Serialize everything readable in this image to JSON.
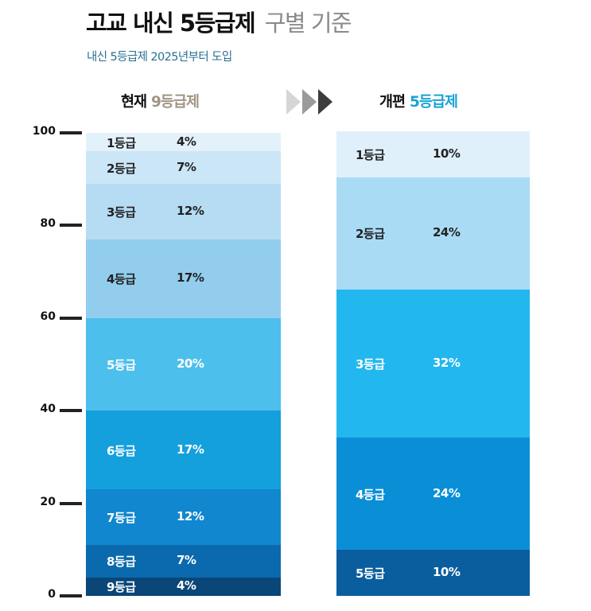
{
  "header": {
    "title_main": "고교 내신 5등급제",
    "title_sub": "구별 기준",
    "subtitle": "내신 5등급제 2025년부터 도입"
  },
  "columns": {
    "left_prefix": "현재",
    "left_accent": "9등급제",
    "right_prefix": "개편",
    "right_accent": "5등급제"
  },
  "axis": {
    "ticks": [
      "100",
      "80",
      "60",
      "40",
      "20",
      "0"
    ]
  },
  "chart_data": [
    {
      "type": "bar",
      "stacked": true,
      "title": "현재 9등급제",
      "ylim": [
        0,
        100
      ],
      "categories": [
        "1등급",
        "2등급",
        "3등급",
        "4등급",
        "5등급",
        "6등급",
        "7등급",
        "8등급",
        "9등급"
      ],
      "values": [
        4,
        7,
        12,
        17,
        20,
        17,
        12,
        7,
        4
      ],
      "labels": [
        "4%",
        "7%",
        "12%",
        "17%",
        "20%",
        "17%",
        "12%",
        "7%",
        "4%"
      ],
      "colors": [
        "#e3f1fa",
        "#cbe6f7",
        "#b5dcf3",
        "#92cdee",
        "#4dbfec",
        "#14a0dd",
        "#1187cf",
        "#0a6aad",
        "#0a4677"
      ],
      "text_colors": [
        "#222222",
        "#222222",
        "#222222",
        "#222222",
        "#ffffff",
        "#ffffff",
        "#ffffff",
        "#ffffff",
        "#ffffff"
      ]
    },
    {
      "type": "bar",
      "stacked": true,
      "title": "개편 5등급제",
      "ylim": [
        0,
        100
      ],
      "categories": [
        "1등급",
        "2등급",
        "3등급",
        "4등급",
        "5등급"
      ],
      "values": [
        10,
        24,
        32,
        24,
        10
      ],
      "labels": [
        "10%",
        "24%",
        "32%",
        "24%",
        "10%"
      ],
      "colors": [
        "#dff0fb",
        "#a9dbf5",
        "#22b7ee",
        "#0a8fd7",
        "#0a5e9e"
      ],
      "text_colors": [
        "#222222",
        "#222222",
        "#ffffff",
        "#ffffff",
        "#ffffff"
      ]
    }
  ]
}
